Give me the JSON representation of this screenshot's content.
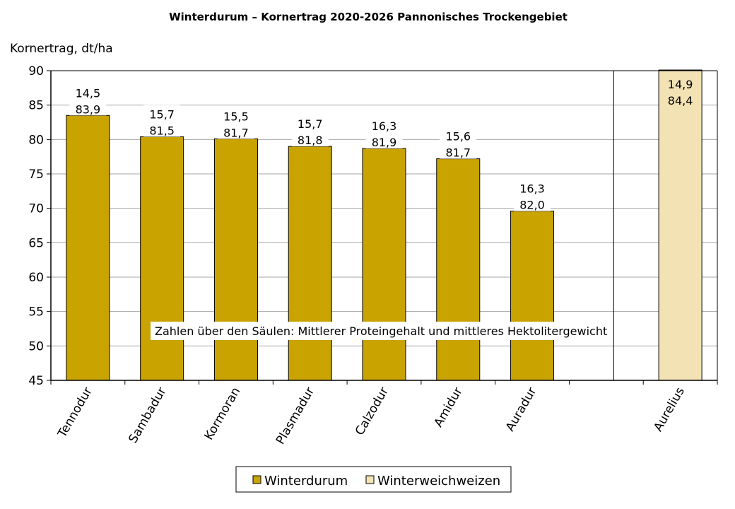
{
  "chart_data": {
    "type": "bar",
    "title": "Winterdurum – Kornertrag 2020-2026 Pannonisches Trockengebiet",
    "ylabel": "Kornertrag, dt/ha",
    "ylim": [
      45,
      90
    ],
    "yticks": [
      "45",
      "50",
      "55",
      "60",
      "65",
      "70",
      "75",
      "80",
      "85",
      "90"
    ],
    "grid": true,
    "legend_position": "bottom",
    "categories": [
      "Tennodur",
      "Sambadur",
      "Kormoran",
      "Plasmadur",
      "Calzodur",
      "Amidur",
      "Auradur",
      "",
      "Aurelius"
    ],
    "series": [
      {
        "name": "Winterdurum",
        "color": "#C9A300",
        "values": [
          83.5,
          80.4,
          80.1,
          79.0,
          78.7,
          77.2,
          69.6,
          null,
          null
        ],
        "protein": [
          "14,5",
          "15,7",
          "15,5",
          "15,7",
          "16,3",
          "15,6",
          "16,3",
          "",
          ""
        ],
        "hektoliter": [
          "83,9",
          "81,5",
          "81,7",
          "81,8",
          "81,9",
          "81,7",
          "82,0",
          "",
          ""
        ]
      },
      {
        "name": "Winterweichweizen",
        "color": "#F2E2B4",
        "values": [
          null,
          null,
          null,
          null,
          null,
          null,
          null,
          null,
          90.1
        ],
        "protein": [
          "",
          "",
          "",
          "",
          "",
          "",
          "",
          "",
          "14,9"
        ],
        "hektoliter": [
          "",
          "",
          "",
          "",
          "",
          "",
          "",
          "",
          "84,4"
        ]
      }
    ],
    "annotation": "Zahlen über den Säulen: Mittlerer Proteingehalt und mittleres Hektolitergewicht"
  }
}
